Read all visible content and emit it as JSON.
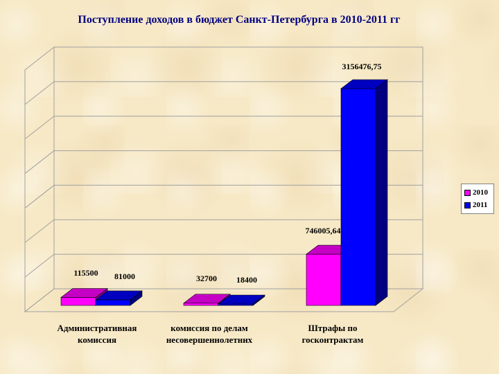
{
  "title": "Поступление доходов в бюджет Санкт-Петербурга в 2010-2011 гг",
  "chart_data": {
    "type": "bar",
    "title": "Поступление доходов в бюджет Санкт-Петербурга в 2010-2011 гг",
    "categories": [
      [
        "Административная",
        "комиссия"
      ],
      [
        "комиссия по делам",
        "несовершеннолетних"
      ],
      [
        "Штрафы по",
        "госконтрактам"
      ]
    ],
    "series": [
      {
        "name": "2010",
        "values": [
          115500,
          32700,
          746005.64
        ],
        "labels": [
          "115500",
          "32700",
          "746005,64"
        ],
        "color": "#ff00ff"
      },
      {
        "name": "2011",
        "values": [
          81000,
          18400,
          3156476.75
        ],
        "labels": [
          "81000",
          "18400",
          "3156476,75"
        ],
        "color": "#0000ff"
      }
    ],
    "ylim": [
      0,
      3500000
    ],
    "grid": true,
    "legend": "right",
    "three_d": true
  }
}
